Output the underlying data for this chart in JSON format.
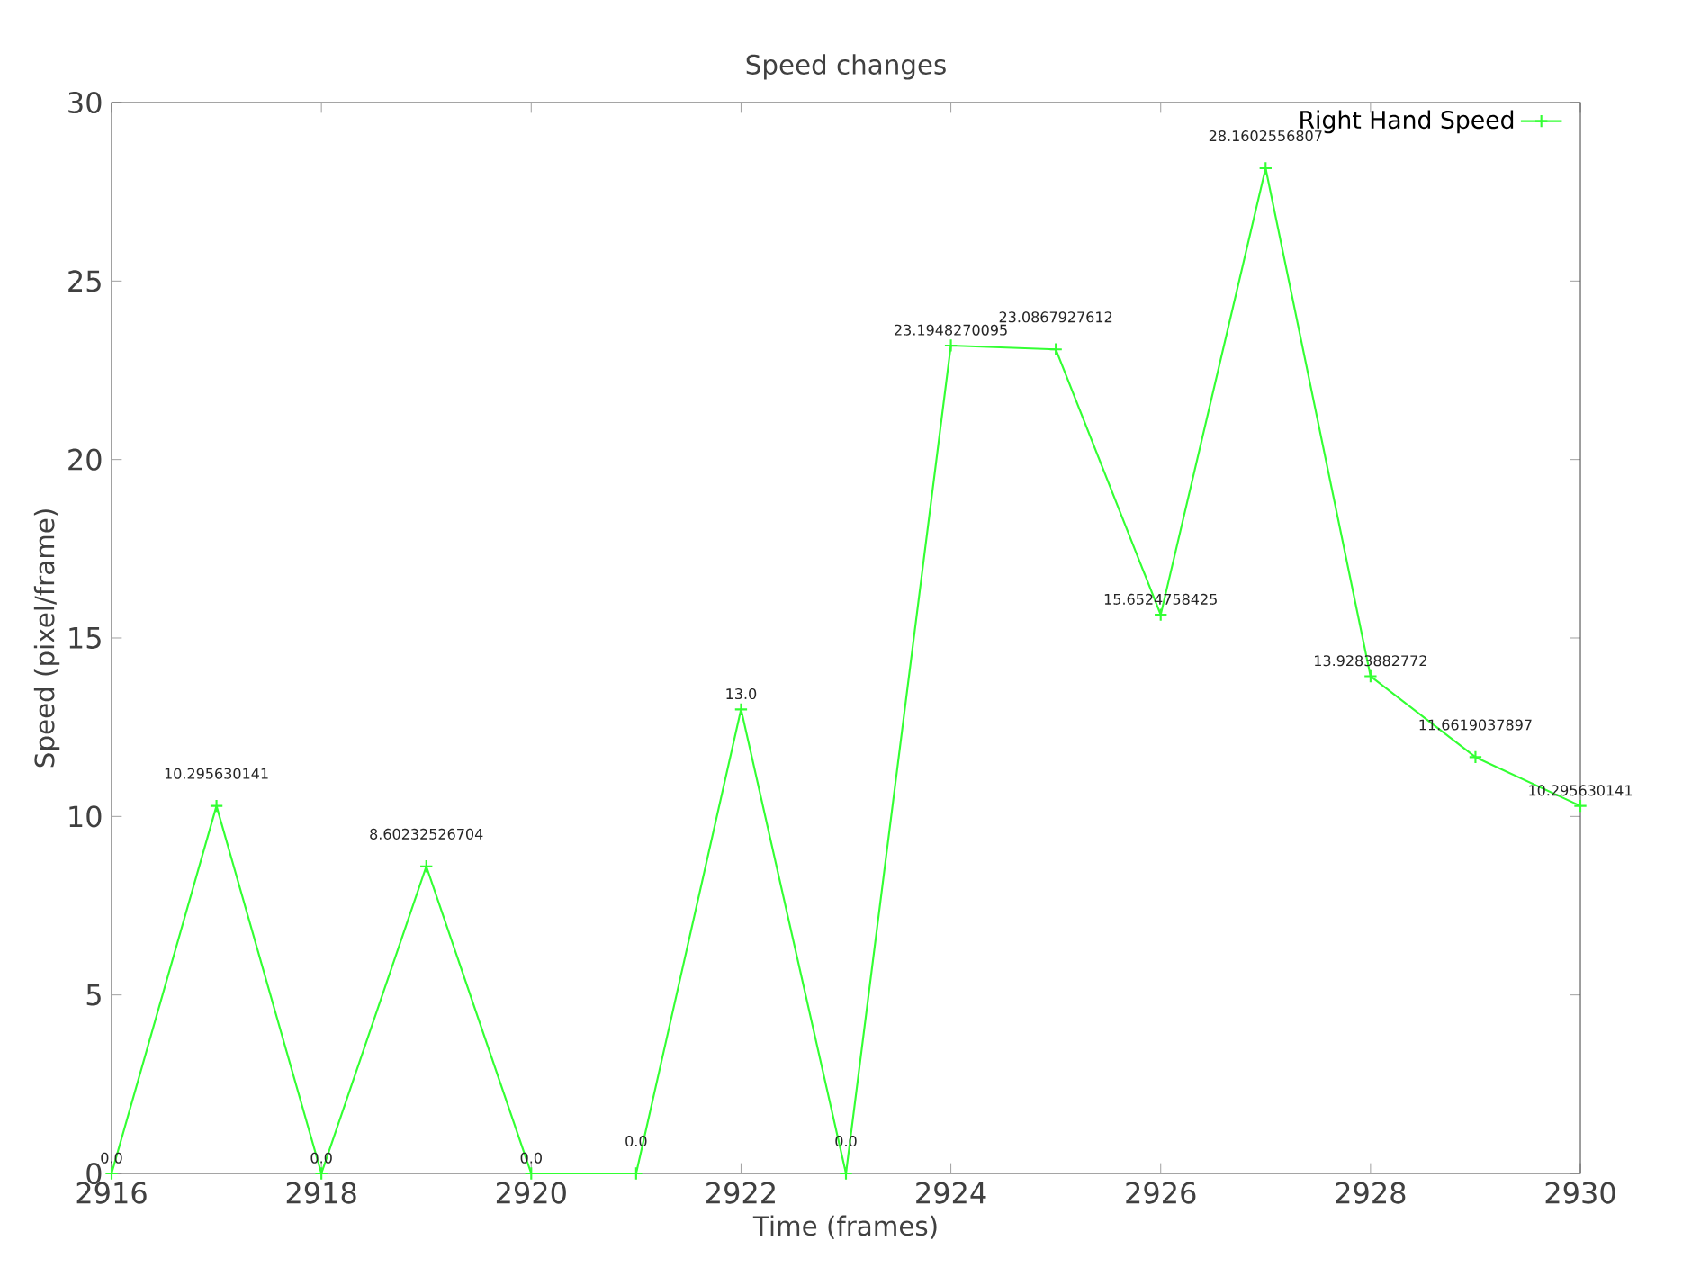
{
  "chart_data": {
    "type": "line",
    "title": "Speed changes",
    "xlabel": "Time (frames)",
    "ylabel": "Speed (pixel/frame)",
    "x": [
      2916,
      2917,
      2918,
      2919,
      2920,
      2921,
      2922,
      2923,
      2924,
      2925,
      2926,
      2927,
      2928,
      2929,
      2930
    ],
    "series": [
      {
        "name": "Right Hand Speed",
        "color": "#33ff33",
        "values": [
          0,
          10.295630141,
          0,
          8.60232526704,
          0,
          0,
          13.0,
          0,
          23.1948270095,
          23.0867927612,
          15.6524758425,
          28.1602556807,
          13.9283882772,
          11.6619037897,
          10.295630141
        ],
        "value_labels": [
          "0.0",
          "10.295630141",
          "0.0",
          "8.60232526704",
          "0.0",
          "0.0",
          "13.0",
          "0.0",
          "23.1948270095",
          "23.0867927612",
          "15.6524758425",
          "28.1602556807",
          "13.9283882772",
          "11.6619037897",
          "10.295630141"
        ]
      }
    ],
    "xlim": [
      2916,
      2930
    ],
    "ylim": [
      0,
      30
    ],
    "xticks": [
      2916,
      2918,
      2920,
      2922,
      2924,
      2926,
      2928,
      2930
    ],
    "yticks": [
      0,
      5,
      10,
      15,
      20,
      25,
      30
    ],
    "legend": "top right",
    "marker": "cross",
    "line_style": "solid",
    "grid": false
  }
}
